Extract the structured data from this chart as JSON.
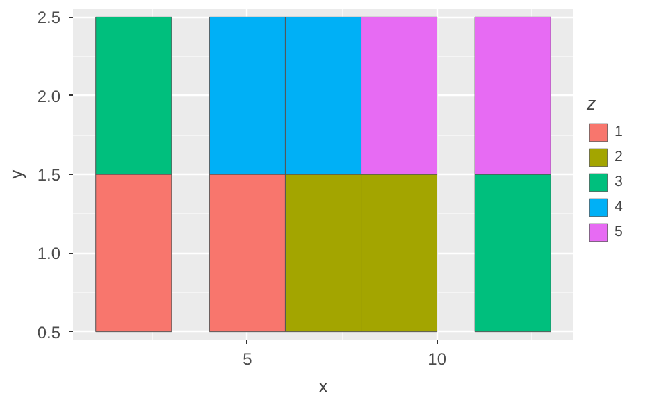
{
  "chart_data": {
    "type": "bar",
    "xlabel": "x",
    "ylabel": "y",
    "legend_title": "z",
    "xlim": [
      0.4,
      13.6
    ],
    "ylim": [
      0.45,
      2.55
    ],
    "xticks": [
      5,
      10
    ],
    "yticks": [
      {
        "value": 0.5,
        "label": "0.5"
      },
      {
        "value": 1.0,
        "label": "1.0"
      },
      {
        "value": 1.5,
        "label": "1.5"
      },
      {
        "value": 2.0,
        "label": "2.0"
      },
      {
        "value": 2.5,
        "label": "2.5"
      }
    ],
    "grid": true,
    "legend": "right",
    "series": [
      {
        "name": "1",
        "color": "#f8766d",
        "x": [
          2,
          5
        ],
        "base": [
          0.5,
          0.5
        ],
        "values": [
          1,
          1
        ]
      },
      {
        "name": "2",
        "color": "#a3a500",
        "x": [
          7,
          9
        ],
        "base": [
          0.5,
          0.5
        ],
        "values": [
          1,
          1
        ]
      },
      {
        "name": "3",
        "color": "#00bf7d",
        "x": [
          2,
          12
        ],
        "base": [
          1.5,
          0.5
        ],
        "values": [
          1,
          1
        ]
      },
      {
        "name": "4",
        "color": "#00b0f6",
        "x": [
          5,
          7
        ],
        "base": [
          1.5,
          1.5
        ],
        "values": [
          1,
          1
        ]
      },
      {
        "name": "5",
        "color": "#e76bf3",
        "x": [
          9,
          12
        ],
        "base": [
          1.5,
          1.5
        ],
        "values": [
          1,
          1
        ]
      }
    ]
  }
}
